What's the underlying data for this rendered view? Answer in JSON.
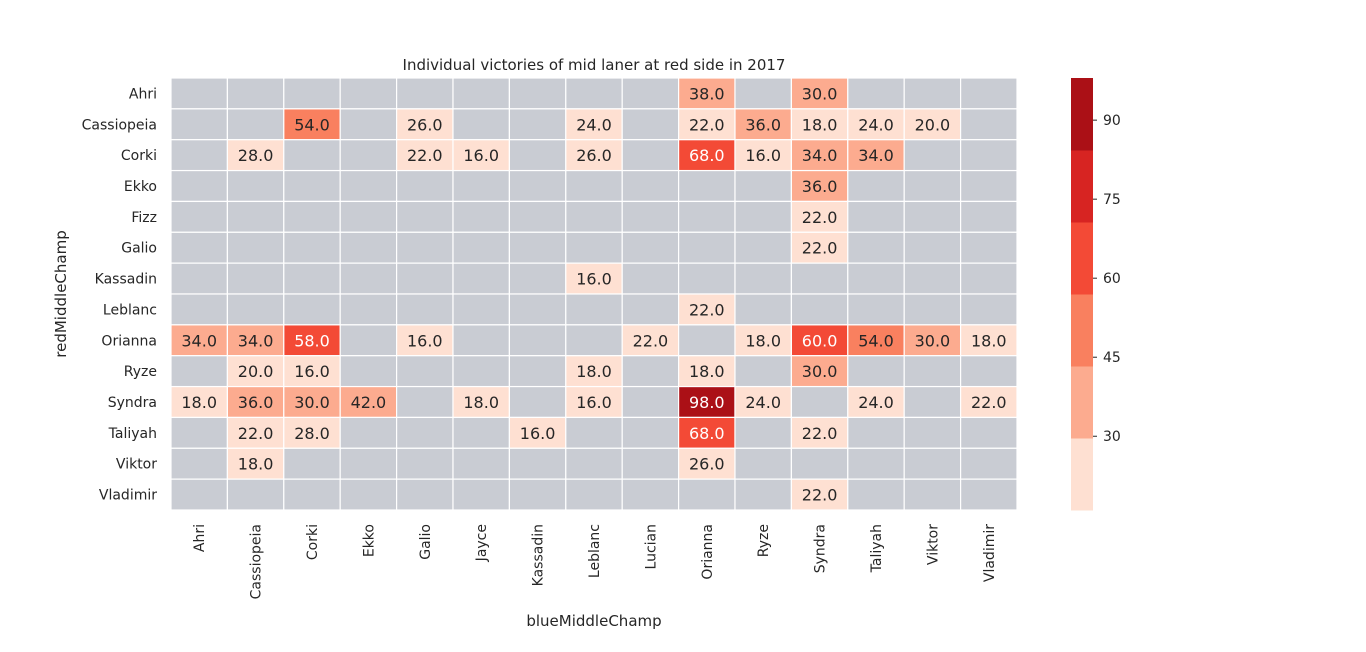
{
  "chart_data": {
    "type": "heatmap",
    "title": "Individual victories of mid laner at red side in 2017",
    "xlabel": "blueMiddleChamp",
    "ylabel": "redMiddleChamp",
    "x_categories": [
      "Ahri",
      "Cassiopeia",
      "Corki",
      "Ekko",
      "Galio",
      "Jayce",
      "Kassadin",
      "Leblanc",
      "Lucian",
      "Orianna",
      "Ryze",
      "Syndra",
      "Taliyah",
      "Viktor",
      "Vladimir"
    ],
    "y_categories": [
      "Ahri",
      "Cassiopeia",
      "Corki",
      "Ekko",
      "Fizz",
      "Galio",
      "Kassadin",
      "Leblanc",
      "Orianna",
      "Ryze",
      "Syndra",
      "Taliyah",
      "Viktor",
      "Vladimir"
    ],
    "values": [
      [
        null,
        null,
        null,
        null,
        null,
        null,
        null,
        null,
        null,
        38.0,
        null,
        30.0,
        null,
        null,
        null
      ],
      [
        null,
        null,
        54.0,
        null,
        26.0,
        null,
        null,
        24.0,
        null,
        22.0,
        36.0,
        18.0,
        24.0,
        20.0,
        null
      ],
      [
        null,
        28.0,
        null,
        null,
        22.0,
        16.0,
        null,
        26.0,
        null,
        68.0,
        16.0,
        34.0,
        34.0,
        null,
        null
      ],
      [
        null,
        null,
        null,
        null,
        null,
        null,
        null,
        null,
        null,
        null,
        null,
        36.0,
        null,
        null,
        null
      ],
      [
        null,
        null,
        null,
        null,
        null,
        null,
        null,
        null,
        null,
        null,
        null,
        22.0,
        null,
        null,
        null
      ],
      [
        null,
        null,
        null,
        null,
        null,
        null,
        null,
        null,
        null,
        null,
        null,
        22.0,
        null,
        null,
        null
      ],
      [
        null,
        null,
        null,
        null,
        null,
        null,
        null,
        16.0,
        null,
        null,
        null,
        null,
        null,
        null,
        null
      ],
      [
        null,
        null,
        null,
        null,
        null,
        null,
        null,
        null,
        null,
        22.0,
        null,
        null,
        null,
        null,
        null
      ],
      [
        34.0,
        34.0,
        58.0,
        null,
        16.0,
        null,
        null,
        null,
        22.0,
        null,
        18.0,
        60.0,
        54.0,
        30.0,
        18.0
      ],
      [
        null,
        20.0,
        16.0,
        null,
        null,
        null,
        null,
        18.0,
        null,
        18.0,
        null,
        30.0,
        null,
        null,
        null
      ],
      [
        18.0,
        36.0,
        30.0,
        42.0,
        null,
        18.0,
        null,
        16.0,
        null,
        98.0,
        24.0,
        null,
        24.0,
        null,
        22.0
      ],
      [
        null,
        22.0,
        28.0,
        null,
        null,
        null,
        16.0,
        null,
        null,
        68.0,
        null,
        22.0,
        null,
        null,
        null
      ],
      [
        null,
        18.0,
        null,
        null,
        null,
        null,
        null,
        null,
        null,
        26.0,
        null,
        null,
        null,
        null,
        null
      ],
      [
        null,
        null,
        null,
        null,
        null,
        null,
        null,
        null,
        null,
        null,
        null,
        22.0,
        null,
        null,
        null
      ]
    ],
    "missing_color": "#c9ccd3",
    "colorbar": {
      "vmin": 16,
      "vmax": 98,
      "ticks": [
        30,
        45,
        60,
        75,
        90
      ],
      "colors": [
        "#fee0d2",
        "#fcab8f",
        "#f9805f",
        "#f34a36",
        "#d72422",
        "#ab1016"
      ]
    },
    "grid": false
  }
}
